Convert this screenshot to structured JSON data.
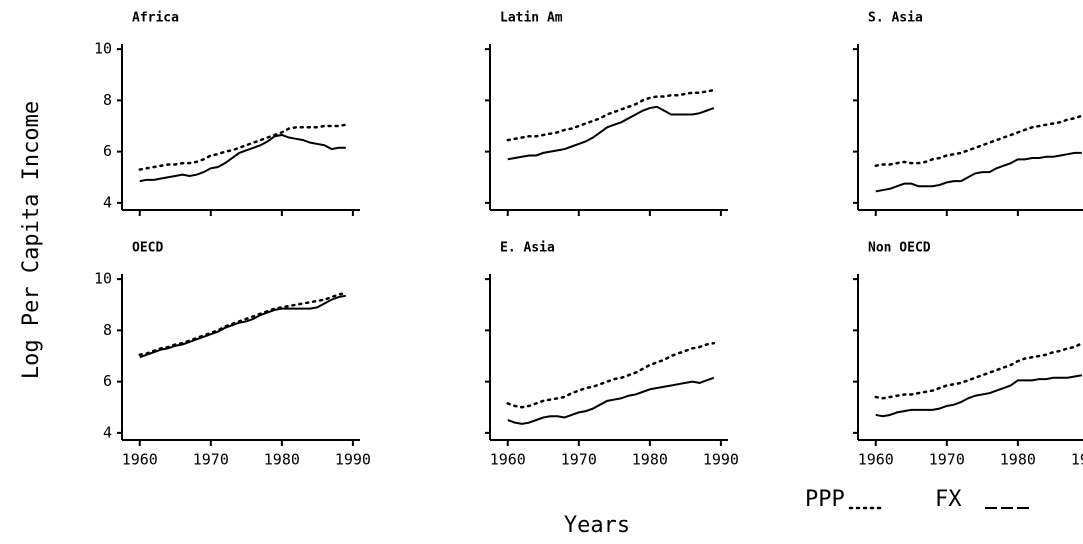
{
  "chart_data": {
    "type": "line",
    "xlabel": "Years",
    "ylabel": "Log Per Capita Income",
    "x": [
      1960,
      1961,
      1962,
      1963,
      1964,
      1965,
      1966,
      1967,
      1968,
      1969,
      1970,
      1971,
      1972,
      1973,
      1974,
      1975,
      1976,
      1977,
      1978,
      1979,
      1980,
      1981,
      1982,
      1983,
      1984,
      1985,
      1986,
      1987,
      1988,
      1989
    ],
    "xlim": [
      1957.5,
      1991
    ],
    "xticks": [
      1960,
      1970,
      1980,
      1990
    ],
    "ylim": [
      3.8,
      10.2
    ],
    "yticks": [
      4,
      6,
      8,
      10
    ],
    "legend_series": [
      {
        "name": "PPP",
        "dash": "dotted",
        "color": "#000000"
      },
      {
        "name": "FX",
        "dash": "solid",
        "color": "#000000"
      }
    ],
    "panels": [
      {
        "title": "Africa",
        "series": [
          {
            "values": [
              5.3,
              5.35,
              5.4,
              5.45,
              5.5,
              5.5,
              5.55,
              5.55,
              5.6,
              5.7,
              5.85,
              5.9,
              6.0,
              6.05,
              6.15,
              6.25,
              6.35,
              6.45,
              6.55,
              6.65,
              6.75,
              6.9,
              6.95,
              6.95,
              6.95,
              6.95,
              7.0,
              7.0,
              7.0,
              7.05
            ]
          },
          {
            "values": [
              4.85,
              4.9,
              4.9,
              4.95,
              5.0,
              5.05,
              5.1,
              5.05,
              5.1,
              5.2,
              5.35,
              5.4,
              5.55,
              5.75,
              5.95,
              6.05,
              6.15,
              6.25,
              6.4,
              6.6,
              6.65,
              6.55,
              6.5,
              6.45,
              6.35,
              6.3,
              6.25,
              6.1,
              6.15,
              6.15
            ]
          }
        ]
      },
      {
        "title": "Latin Am",
        "series": [
          {
            "values": [
              6.45,
              6.5,
              6.55,
              6.6,
              6.6,
              6.65,
              6.7,
              6.75,
              6.85,
              6.9,
              7.0,
              7.1,
              7.2,
              7.3,
              7.45,
              7.55,
              7.65,
              7.75,
              7.85,
              8.0,
              8.1,
              8.15,
              8.15,
              8.2,
              8.2,
              8.25,
              8.3,
              8.3,
              8.35,
              8.4
            ]
          },
          {
            "values": [
              5.7,
              5.75,
              5.8,
              5.85,
              5.85,
              5.95,
              6.0,
              6.05,
              6.1,
              6.2,
              6.3,
              6.4,
              6.55,
              6.75,
              6.95,
              7.05,
              7.15,
              7.3,
              7.45,
              7.6,
              7.7,
              7.75,
              7.6,
              7.45,
              7.45,
              7.45,
              7.45,
              7.5,
              7.6,
              7.7
            ]
          }
        ]
      },
      {
        "title": "S. Asia",
        "series": [
          {
            "values": [
              5.45,
              5.5,
              5.5,
              5.55,
              5.6,
              5.55,
              5.55,
              5.6,
              5.7,
              5.75,
              5.85,
              5.9,
              5.95,
              6.05,
              6.15,
              6.25,
              6.35,
              6.45,
              6.55,
              6.65,
              6.75,
              6.85,
              6.95,
              7.0,
              7.05,
              7.1,
              7.15,
              7.25,
              7.3,
              7.4
            ]
          },
          {
            "values": [
              4.45,
              4.5,
              4.55,
              4.65,
              4.75,
              4.75,
              4.65,
              4.65,
              4.65,
              4.7,
              4.8,
              4.85,
              4.85,
              5.0,
              5.15,
              5.2,
              5.2,
              5.35,
              5.45,
              5.55,
              5.7,
              5.7,
              5.75,
              5.75,
              5.8,
              5.8,
              5.85,
              5.9,
              5.95,
              5.95
            ]
          }
        ]
      },
      {
        "title": "OECD",
        "series": [
          {
            "values": [
              7.05,
              7.1,
              7.2,
              7.3,
              7.35,
              7.45,
              7.5,
              7.6,
              7.7,
              7.8,
              7.9,
              8.0,
              8.15,
              8.25,
              8.35,
              8.45,
              8.55,
              8.65,
              8.75,
              8.85,
              8.9,
              8.95,
              9.0,
              9.05,
              9.1,
              9.15,
              9.2,
              9.3,
              9.4,
              9.45
            ]
          },
          {
            "values": [
              6.95,
              7.05,
              7.15,
              7.25,
              7.3,
              7.4,
              7.45,
              7.55,
              7.65,
              7.75,
              7.85,
              7.95,
              8.1,
              8.2,
              8.3,
              8.35,
              8.45,
              8.6,
              8.7,
              8.8,
              8.85,
              8.85,
              8.85,
              8.85,
              8.85,
              8.9,
              9.05,
              9.2,
              9.3,
              9.35
            ]
          }
        ]
      },
      {
        "title": "E. Asia",
        "series": [
          {
            "values": [
              5.15,
              5.05,
              5.0,
              5.05,
              5.15,
              5.25,
              5.3,
              5.35,
              5.4,
              5.55,
              5.65,
              5.75,
              5.8,
              5.9,
              6.0,
              6.1,
              6.15,
              6.25,
              6.35,
              6.5,
              6.65,
              6.75,
              6.85,
              7.0,
              7.1,
              7.2,
              7.3,
              7.35,
              7.45,
              7.5
            ]
          },
          {
            "values": [
              4.5,
              4.4,
              4.35,
              4.4,
              4.5,
              4.6,
              4.65,
              4.65,
              4.6,
              4.7,
              4.8,
              4.85,
              4.95,
              5.1,
              5.25,
              5.3,
              5.35,
              5.45,
              5.5,
              5.6,
              5.7,
              5.75,
              5.8,
              5.85,
              5.9,
              5.95,
              6.0,
              5.95,
              6.05,
              6.15
            ]
          }
        ]
      },
      {
        "title": "Non OECD",
        "series": [
          {
            "values": [
              5.4,
              5.35,
              5.4,
              5.45,
              5.5,
              5.5,
              5.55,
              5.6,
              5.65,
              5.75,
              5.85,
              5.9,
              5.95,
              6.05,
              6.15,
              6.25,
              6.35,
              6.45,
              6.55,
              6.65,
              6.8,
              6.9,
              6.95,
              7.0,
              7.05,
              7.15,
              7.2,
              7.3,
              7.35,
              7.5
            ]
          },
          {
            "values": [
              4.7,
              4.65,
              4.7,
              4.8,
              4.85,
              4.9,
              4.9,
              4.9,
              4.9,
              4.95,
              5.05,
              5.1,
              5.2,
              5.35,
              5.45,
              5.5,
              5.55,
              5.65,
              5.75,
              5.85,
              6.05,
              6.05,
              6.05,
              6.1,
              6.1,
              6.15,
              6.15,
              6.15,
              6.2,
              6.25
            ]
          }
        ]
      }
    ]
  }
}
